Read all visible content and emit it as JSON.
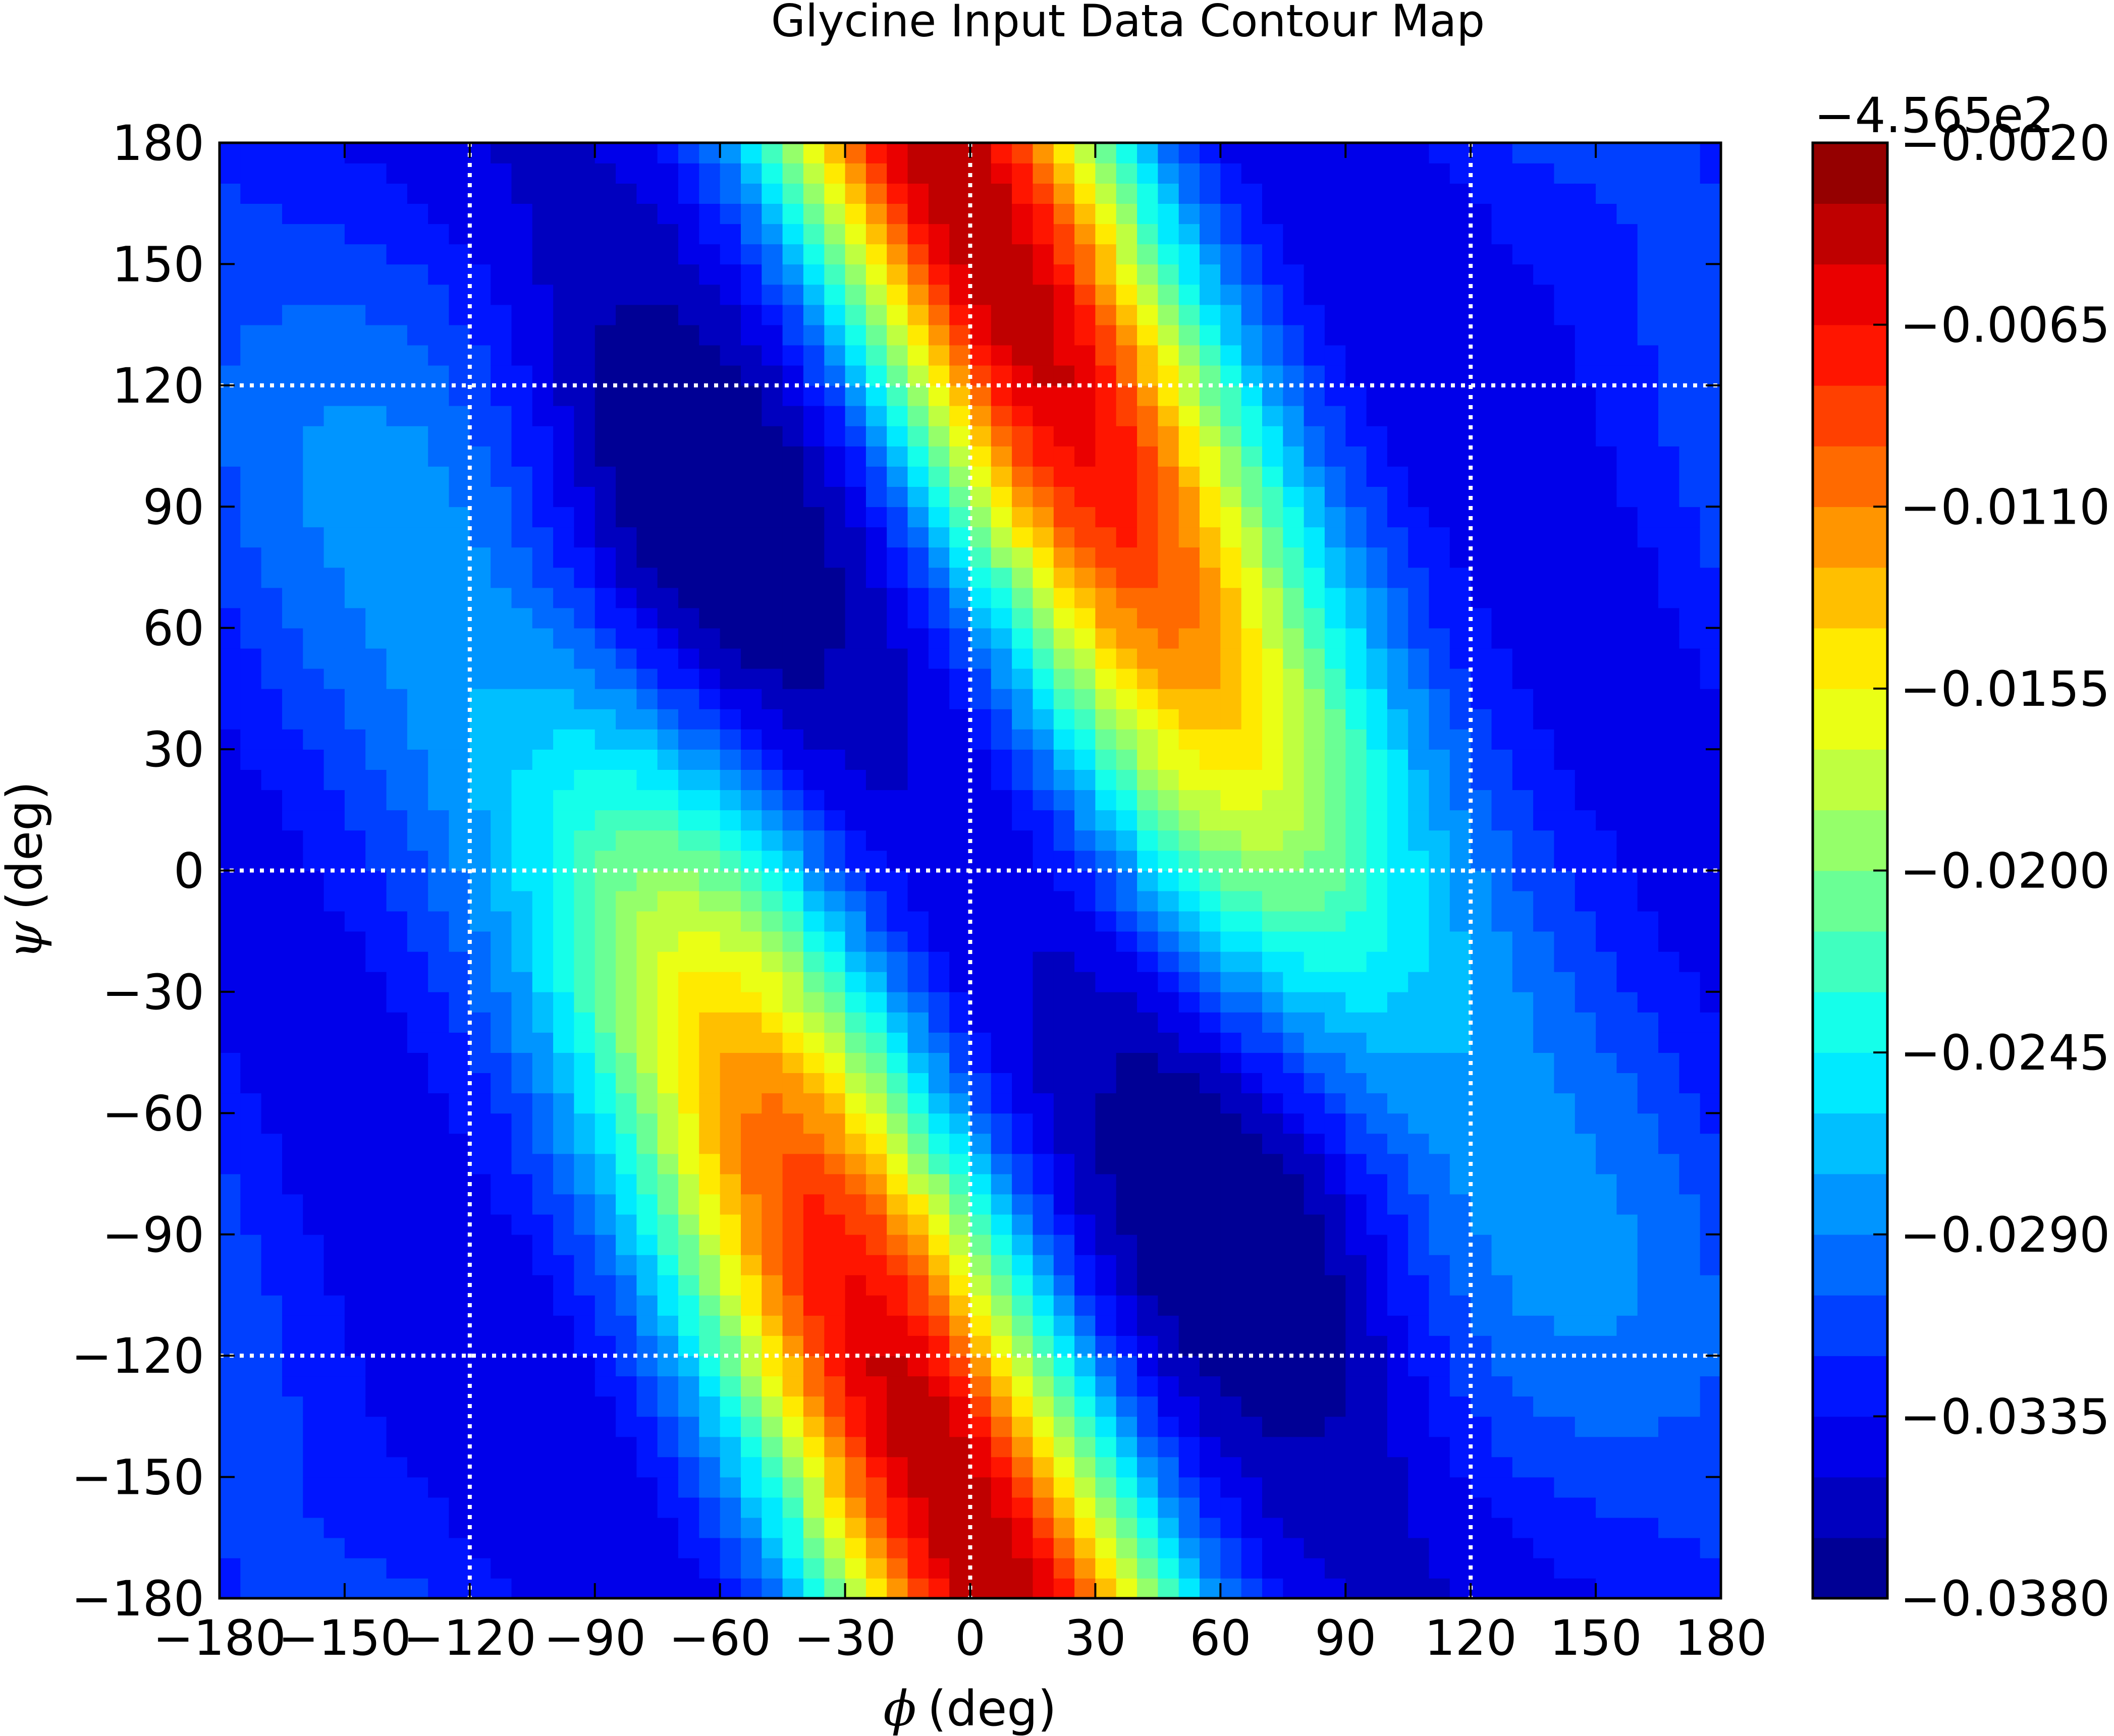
{
  "chart_data": {
    "type": "contour",
    "title": "Glycine Input Data Contour Map",
    "xlabel_symbol": "ϕ",
    "xlabel_unit": "(deg)",
    "ylabel_symbol": "ψ",
    "ylabel_unit": "(deg)",
    "xlim": [
      -180,
      180
    ],
    "ylim": [
      -180,
      180
    ],
    "x_ticks": [
      -180,
      -150,
      -120,
      -90,
      -60,
      -30,
      0,
      30,
      60,
      90,
      120,
      150,
      180
    ],
    "y_ticks": [
      -180,
      -150,
      -120,
      -90,
      -60,
      -30,
      0,
      30,
      60,
      90,
      120,
      150,
      180
    ],
    "x_tick_labels": [
      "−180",
      "−150",
      "−120",
      "−90",
      "−60",
      "−30",
      "0",
      "30",
      "60",
      "90",
      "120",
      "150",
      "180"
    ],
    "y_tick_labels": [
      "−180",
      "−150",
      "−120",
      "−90",
      "−60",
      "−30",
      "0",
      "30",
      "60",
      "90",
      "120",
      "150",
      "180"
    ],
    "grid_lines_x": [
      -120,
      0,
      120
    ],
    "grid_lines_y": [
      -120,
      0,
      120
    ],
    "grid_style": "dotted white",
    "colormap": "jet",
    "n_levels": 24,
    "level_min": -0.038,
    "level_max": -0.002,
    "colorbar_offset": "−4.565e2",
    "colorbar_ticks": [
      -0.038,
      -0.0335,
      -0.029,
      -0.0245,
      -0.02,
      -0.0155,
      -0.011,
      -0.0065,
      -0.002
    ],
    "colorbar_tick_labels": [
      "−0.0380",
      "−0.0335",
      "−0.0290",
      "−0.0245",
      "−0.0200",
      "−0.0155",
      "−0.0110",
      "−0.0065",
      "−0.0020"
    ],
    "features": [
      {
        "kind": "maximum",
        "phi": 15,
        "psi": 165,
        "value": -0.003
      },
      {
        "kind": "maximum",
        "phi": -15,
        "psi": -165,
        "value": -0.003
      },
      {
        "kind": "minimum",
        "phi": -80,
        "psi": 70,
        "value": -0.037
      },
      {
        "kind": "minimum",
        "phi": 80,
        "psi": -70,
        "value": -0.037
      },
      {
        "kind": "minimum",
        "phi": -165,
        "psi": 165,
        "value": -0.0365
      },
      {
        "kind": "minimum",
        "phi": 165,
        "psi": -165,
        "value": -0.0365
      }
    ]
  }
}
